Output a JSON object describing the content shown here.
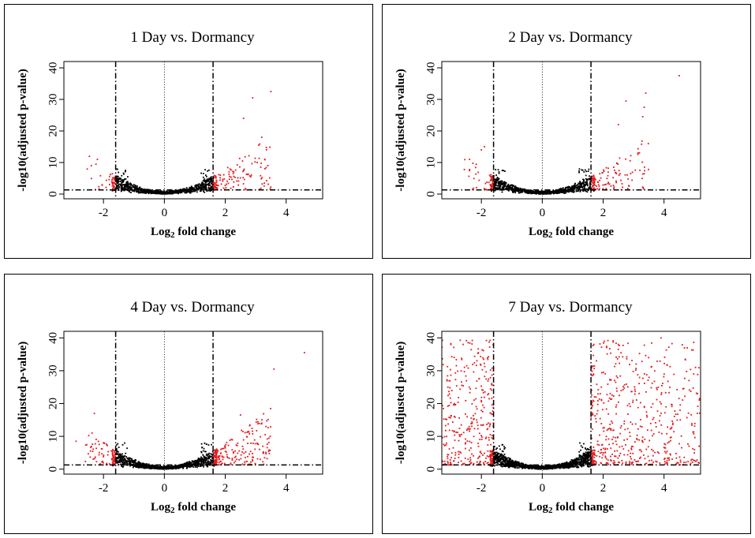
{
  "chart_data": [
    {
      "type": "scatter",
      "title": "1 Day vs. Dormancy",
      "xlabel_main": "Log",
      "xlabel_sub": "2",
      "xlabel_rest": " fold change",
      "ylabel": "-log10(adjusted p-value)",
      "xlim": [
        -3.3,
        5.2
      ],
      "ylim": [
        -1.5,
        42
      ],
      "xticks": [
        -2,
        0,
        2,
        4
      ],
      "yticks": [
        0,
        10,
        20,
        30,
        40
      ],
      "fc_threshold": 1.6,
      "p_threshold": 1.3,
      "colors": {
        "significant": "#e31a1c",
        "nonsignificant": "#000000"
      },
      "seed": 11,
      "nonsig_count": 900,
      "up_count": 110,
      "down_count": 20,
      "highlights": [
        [
          3.5,
          32.5
        ],
        [
          2.9,
          30.5
        ],
        [
          2.6,
          24
        ],
        [
          3.2,
          18
        ],
        [
          3.1,
          15.5
        ],
        [
          -2.2,
          11
        ],
        [
          -2.4,
          9
        ],
        [
          3.3,
          11
        ]
      ]
    },
    {
      "type": "scatter",
      "title": "2 Day vs. Dormancy",
      "xlabel_main": "Log",
      "xlabel_sub": "2",
      "xlabel_rest": " fold change",
      "ylabel": "-log10(adjusted p-value)",
      "xlim": [
        -3.3,
        5.2
      ],
      "ylim": [
        -1.5,
        42
      ],
      "xticks": [
        -2,
        0,
        2,
        4
      ],
      "yticks": [
        0,
        10,
        20,
        30,
        40
      ],
      "fc_threshold": 1.6,
      "p_threshold": 1.3,
      "colors": {
        "significant": "#e31a1c",
        "nonsignificant": "#000000"
      },
      "seed": 23,
      "nonsig_count": 900,
      "up_count": 95,
      "down_count": 25,
      "highlights": [
        [
          4.5,
          37.5
        ],
        [
          3.4,
          32
        ],
        [
          3.35,
          27.5
        ],
        [
          2.75,
          29.5
        ],
        [
          3.3,
          24.5
        ],
        [
          2.5,
          22
        ],
        [
          -2.0,
          14
        ],
        [
          -1.9,
          15
        ]
      ]
    },
    {
      "type": "scatter",
      "title": "4 Day vs. Dormancy",
      "xlabel_main": "Log",
      "xlabel_sub": "2",
      "xlabel_rest": " fold change",
      "ylabel": "-log10(adjusted p-value)",
      "xlim": [
        -3.3,
        5.2
      ],
      "ylim": [
        -1.5,
        42
      ],
      "xticks": [
        -2,
        0,
        2,
        4
      ],
      "yticks": [
        0,
        10,
        20,
        30,
        40
      ],
      "fc_threshold": 1.6,
      "p_threshold": 1.3,
      "colors": {
        "significant": "#e31a1c",
        "nonsignificant": "#000000"
      },
      "seed": 37,
      "nonsig_count": 1000,
      "up_count": 180,
      "down_count": 55,
      "highlights": [
        [
          4.6,
          35.5
        ],
        [
          3.6,
          30.5
        ],
        [
          -2.3,
          17
        ],
        [
          2.5,
          16.5
        ],
        [
          -2.9,
          8.5
        ],
        [
          3.2,
          14
        ]
      ]
    },
    {
      "type": "scatter",
      "title": "7 Day vs. Dormancy",
      "xlabel_main": "Log",
      "xlabel_sub": "2",
      "xlabel_rest": " fold change",
      "ylabel": "-log10(adjusted p-value)",
      "xlim": [
        -3.3,
        5.2
      ],
      "ylim": [
        -1.5,
        42
      ],
      "xticks": [
        -2,
        0,
        2,
        4
      ],
      "yticks": [
        0,
        10,
        20,
        30,
        40
      ],
      "fc_threshold": 1.6,
      "p_threshold": 1.3,
      "colors": {
        "significant": "#e31a1c",
        "nonsignificant": "#000000"
      },
      "seed": 53,
      "nonsig_count": 1300,
      "up_count": 520,
      "down_count": 330,
      "highlights": [
        [
          3.9,
          40
        ],
        [
          2.5,
          38
        ],
        [
          -3.0,
          38
        ],
        [
          -2.6,
          38
        ],
        [
          -2.1,
          35.5
        ],
        [
          4.7,
          33.5
        ],
        [
          5.1,
          23
        ],
        [
          -3.1,
          25
        ]
      ]
    }
  ]
}
